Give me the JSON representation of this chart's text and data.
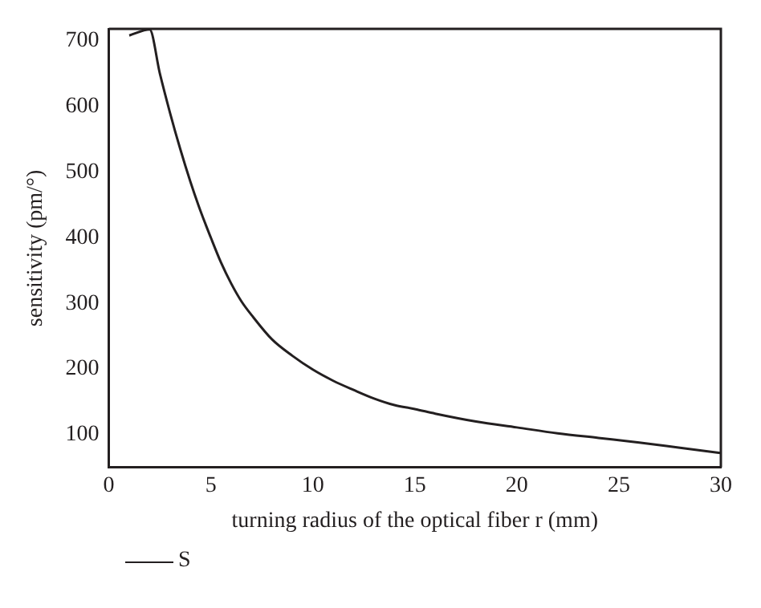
{
  "chart_data": {
    "type": "line",
    "xlabel": "turning radius of the optical fiber r (mm)",
    "ylabel": "sensitivity (pm/°)",
    "xlim": [
      0,
      30
    ],
    "xticks": [
      0,
      5,
      10,
      15,
      20,
      25,
      30
    ],
    "ylim": [
      50,
      718
    ],
    "yticks": [
      100,
      200,
      300,
      400,
      500,
      600,
      700
    ],
    "grid": false,
    "legend": "bottom left",
    "marker": "none",
    "line_style": "solid",
    "series": [
      {
        "name": "S",
        "color": "#231f20",
        "x": [
          1,
          2,
          2.5,
          3,
          3.5,
          4,
          4.5,
          5,
          5.5,
          6,
          6.5,
          7,
          8,
          9,
          10,
          11,
          12,
          13,
          14,
          15,
          16,
          18,
          20,
          22,
          24,
          26,
          28,
          30
        ],
        "values": [
          708,
          717,
          650,
          590,
          535,
          485,
          440,
          400,
          362,
          330,
          303,
          282,
          245,
          220,
          199,
          182,
          168,
          155,
          145,
          139,
          132,
          120,
          111,
          102,
          95,
          88,
          80,
          72
        ]
      }
    ]
  }
}
